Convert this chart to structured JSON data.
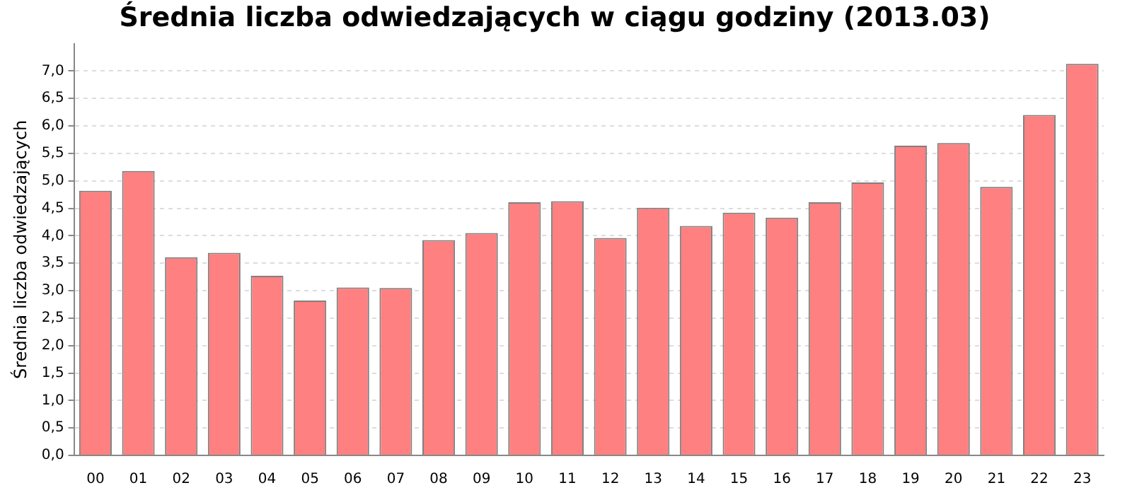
{
  "chart_data": {
    "type": "bar",
    "title": "Średnia liczba odwiedzających w ciągu godziny (2013.03)",
    "ylabel": "Średnia liczba odwiedzających",
    "categories": [
      "00",
      "01",
      "02",
      "03",
      "04",
      "05",
      "06",
      "07",
      "08",
      "09",
      "10",
      "11",
      "12",
      "13",
      "14",
      "15",
      "16",
      "17",
      "18",
      "19",
      "20",
      "21",
      "22",
      "23"
    ],
    "values": [
      4.82,
      5.18,
      3.61,
      3.69,
      3.27,
      2.82,
      3.06,
      3.05,
      3.92,
      4.05,
      4.61,
      4.63,
      3.96,
      4.51,
      4.18,
      4.42,
      4.33,
      4.61,
      4.97,
      5.64,
      5.69,
      4.89,
      6.2,
      7.13
    ],
    "color": "#ff8080",
    "ylim": [
      0,
      7.5
    ],
    "yticks": [
      {
        "value": 0,
        "label": "0,0"
      },
      {
        "value": 0.5,
        "label": "0,5"
      },
      {
        "value": 1,
        "label": "1,0"
      },
      {
        "value": 1.5,
        "label": "1,5"
      },
      {
        "value": 2,
        "label": "2,0"
      },
      {
        "value": 2.5,
        "label": "2,5"
      },
      {
        "value": 3,
        "label": "3,0"
      },
      {
        "value": 3.5,
        "label": "3,5"
      },
      {
        "value": 4,
        "label": "4,0"
      },
      {
        "value": 4.5,
        "label": "4,5"
      },
      {
        "value": 5,
        "label": "5,0"
      },
      {
        "value": 5.5,
        "label": "5,5"
      },
      {
        "value": 6,
        "label": "6,0"
      },
      {
        "value": 6.5,
        "label": "6,5"
      },
      {
        "value": 7,
        "label": "7,0"
      }
    ],
    "grid": "y",
    "legend": false
  }
}
